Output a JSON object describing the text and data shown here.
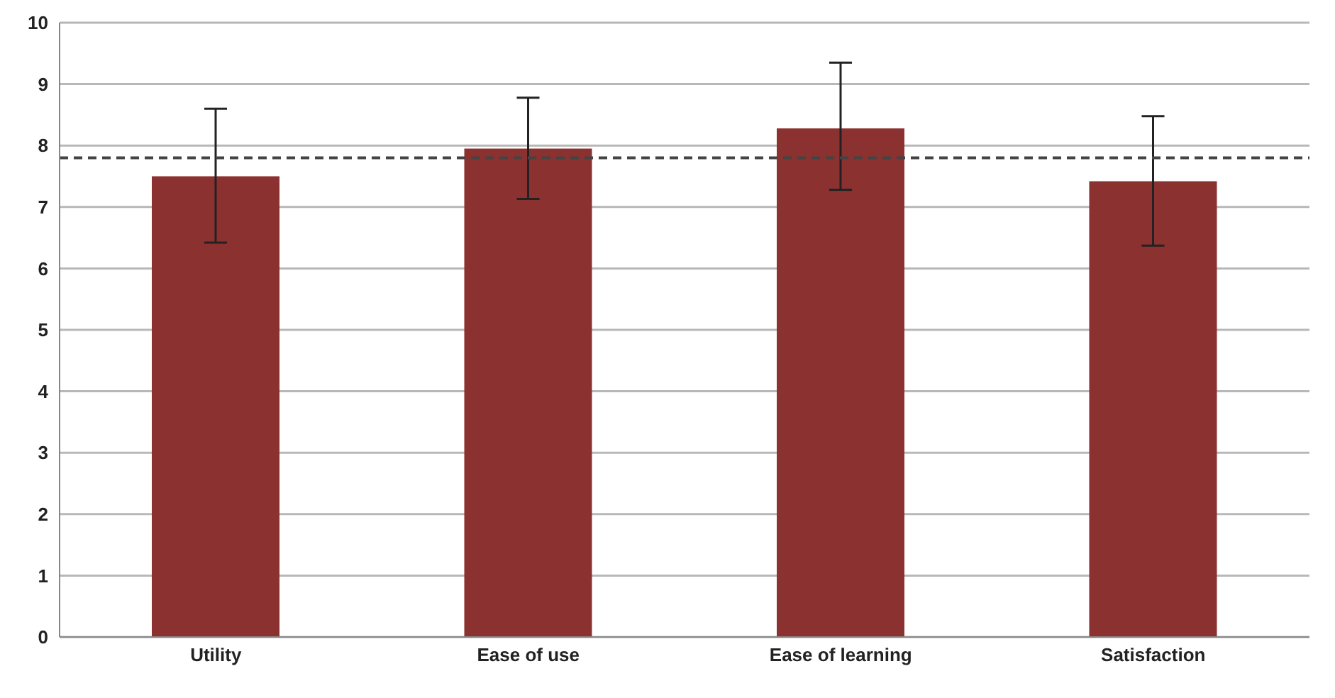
{
  "chart_data": {
    "type": "bar",
    "categories": [
      "Utility",
      "Ease of use",
      "Ease of learning",
      "Satisfaction"
    ],
    "values": [
      7.5,
      7.95,
      8.28,
      7.42
    ],
    "errors": [
      [
        6.42,
        8.6
      ],
      [
        7.13,
        8.78
      ],
      [
        7.28,
        9.35
      ],
      [
        6.37,
        8.48
      ]
    ],
    "color": "#8b3130",
    "ylim": [
      0,
      10
    ],
    "yticks": [
      0,
      1,
      2,
      3,
      4,
      5,
      6,
      7,
      8,
      9,
      10
    ],
    "grid": "y",
    "ref_lines": [
      {
        "axis": "y",
        "value": 7.8,
        "line_style": "dashed",
        "color": "#444444"
      }
    ]
  }
}
